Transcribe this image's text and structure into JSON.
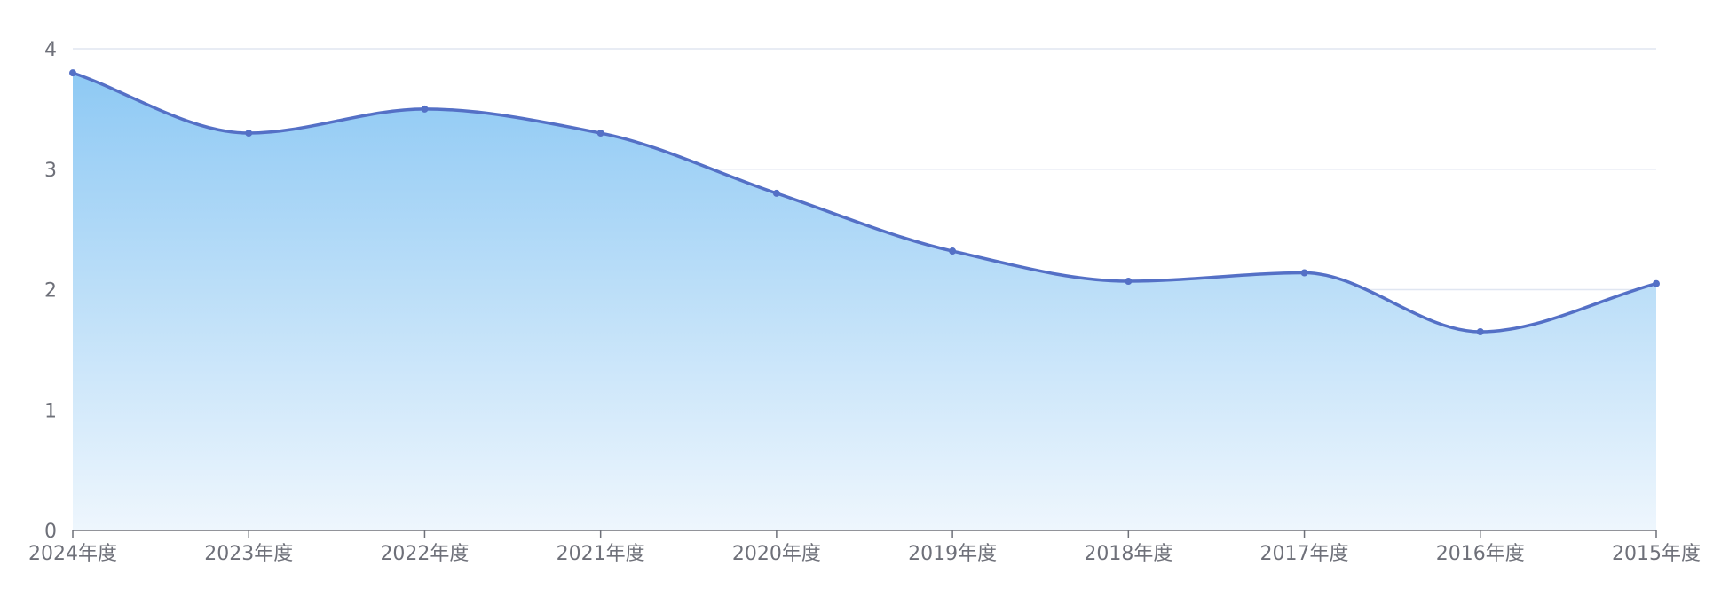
{
  "chart_data": {
    "type": "area",
    "categories": [
      "2024年度",
      "2023年度",
      "2022年度",
      "2021年度",
      "2020年度",
      "2019年度",
      "2018年度",
      "2017年度",
      "2016年度",
      "2015年度"
    ],
    "series": [
      {
        "values": [
          3.8,
          3.3,
          3.5,
          3.3,
          2.8,
          2.32,
          2.07,
          2.14,
          1.65,
          2.05
        ]
      }
    ],
    "ylim": [
      0,
      4
    ],
    "yticks": [
      0,
      1,
      2,
      3,
      4
    ],
    "grid": true,
    "smooth": true,
    "colors": {
      "line": "#5470c6",
      "area_top": "#8ec9f4",
      "area_bottom": "#eef6fd",
      "grid": "#e0e6f1",
      "axis": "#6e7079"
    }
  }
}
